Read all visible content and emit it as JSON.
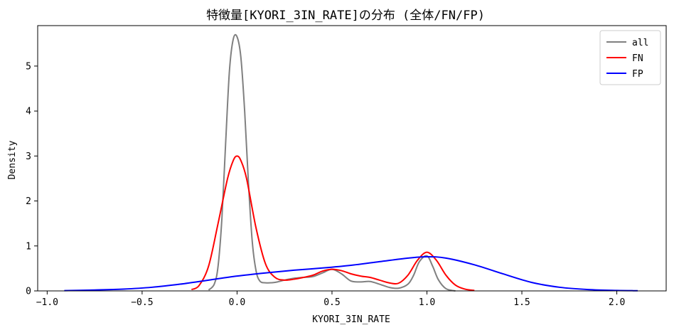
{
  "chart_data": {
    "type": "line",
    "title": "特徴量[KYORI_3IN_RATE]の分布 (全体/FN/FP)",
    "xlabel": "KYORI_3IN_RATE",
    "ylabel": "Density",
    "xlim": [
      -1.05,
      2.26
    ],
    "ylim": [
      0,
      5.9
    ],
    "xticks": [
      -1.0,
      -0.5,
      0.0,
      0.5,
      1.0,
      1.5,
      2.0
    ],
    "xtick_labels": [
      "−1.0",
      "−0.5",
      "0.0",
      "0.5",
      "1.0",
      "1.5",
      "2.0"
    ],
    "yticks": [
      0,
      1,
      2,
      3,
      4,
      5
    ],
    "ytick_labels": [
      "0",
      "1",
      "2",
      "3",
      "4",
      "5"
    ],
    "grid": false,
    "legend_position": "top-right",
    "series": [
      {
        "name": "all",
        "color": "#808080",
        "x": [
          -0.15,
          -0.12,
          -0.1,
          -0.08,
          -0.06,
          -0.04,
          -0.02,
          0.0,
          0.02,
          0.04,
          0.06,
          0.08,
          0.1,
          0.12,
          0.15,
          0.2,
          0.25,
          0.3,
          0.35,
          0.4,
          0.45,
          0.5,
          0.55,
          0.6,
          0.65,
          0.7,
          0.75,
          0.8,
          0.85,
          0.9,
          0.93,
          0.96,
          1.0,
          1.03,
          1.06,
          1.1,
          1.15
        ],
        "values": [
          0.02,
          0.15,
          0.55,
          1.6,
          3.3,
          4.9,
          5.6,
          5.65,
          5.2,
          4.0,
          2.4,
          1.1,
          0.45,
          0.22,
          0.18,
          0.19,
          0.24,
          0.28,
          0.3,
          0.32,
          0.4,
          0.48,
          0.38,
          0.22,
          0.2,
          0.21,
          0.15,
          0.08,
          0.06,
          0.15,
          0.35,
          0.65,
          0.78,
          0.55,
          0.25,
          0.05,
          0.0
        ]
      },
      {
        "name": "FN",
        "color": "#ff0000",
        "x": [
          -0.24,
          -0.2,
          -0.15,
          -0.1,
          -0.05,
          -0.02,
          0.0,
          0.02,
          0.05,
          0.1,
          0.15,
          0.2,
          0.25,
          0.3,
          0.35,
          0.4,
          0.45,
          0.5,
          0.55,
          0.6,
          0.65,
          0.7,
          0.75,
          0.8,
          0.85,
          0.9,
          0.95,
          1.0,
          1.05,
          1.1,
          1.15,
          1.2,
          1.25
        ],
        "values": [
          0.03,
          0.12,
          0.55,
          1.5,
          2.5,
          2.9,
          3.0,
          2.9,
          2.5,
          1.4,
          0.6,
          0.3,
          0.24,
          0.26,
          0.3,
          0.35,
          0.44,
          0.48,
          0.45,
          0.38,
          0.33,
          0.3,
          0.24,
          0.18,
          0.17,
          0.35,
          0.68,
          0.86,
          0.68,
          0.35,
          0.13,
          0.04,
          0.01
        ]
      },
      {
        "name": "FP",
        "color": "#0000ff",
        "x": [
          -0.91,
          -0.75,
          -0.6,
          -0.45,
          -0.3,
          -0.15,
          0.0,
          0.15,
          0.3,
          0.45,
          0.6,
          0.75,
          0.9,
          1.0,
          1.1,
          1.25,
          1.4,
          1.55,
          1.7,
          1.85,
          2.0,
          2.11
        ],
        "values": [
          0.005,
          0.02,
          0.04,
          0.08,
          0.15,
          0.24,
          0.33,
          0.4,
          0.46,
          0.51,
          0.57,
          0.65,
          0.73,
          0.76,
          0.73,
          0.58,
          0.38,
          0.19,
          0.08,
          0.03,
          0.01,
          0.004
        ]
      }
    ]
  }
}
